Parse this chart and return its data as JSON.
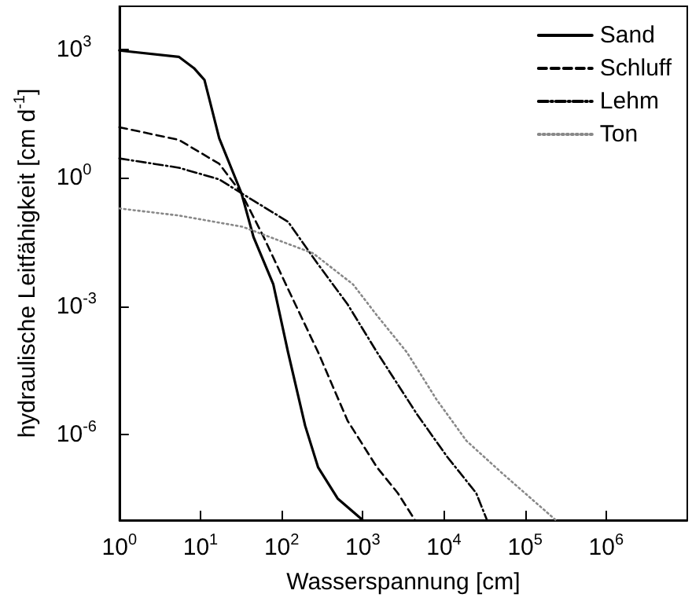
{
  "chart_data": {
    "type": "line",
    "xlabel": "Wasserspannung [cm]",
    "ylabel": "hydraulische Leitfähigkeit [cm d$^{-1}$]",
    "log": "xy",
    "xlim": [
      1,
      10000000
    ],
    "ylim": [
      1e-08,
      10000
    ],
    "xticks": [
      {
        "value": 1,
        "label": "10$^{0}$"
      },
      {
        "value": 10,
        "label": "10$^{1}$"
      },
      {
        "value": 100,
        "label": "10$^{2}$"
      },
      {
        "value": 1000,
        "label": "10$^{3}$"
      },
      {
        "value": 10000,
        "label": "10$^{4}$"
      },
      {
        "value": 100000,
        "label": "10$^{5}$"
      },
      {
        "value": 1000000,
        "label": "10$^{6}$"
      }
    ],
    "yticks": [
      {
        "value": 1e-06,
        "label": "10$^{-6}$"
      },
      {
        "value": 0.001,
        "label": "10$^{-3}$"
      },
      {
        "value": 1,
        "label": "10$^{0}$"
      },
      {
        "value": 1000,
        "label": "10$^{3}$"
      }
    ],
    "grid": false,
    "legend": "top right",
    "marker": "none",
    "series": [
      {
        "name": "Sand",
        "color": "#000000",
        "line_style": "solid",
        "x": [
          1,
          5.4,
          8.3,
          11.2,
          12.6,
          17,
          32,
          45,
          79,
          120,
          195,
          282,
          490,
          1000
        ],
        "values": [
          930,
          660,
          360,
          190,
          79,
          8.3,
          0.43,
          0.041,
          0.0032,
          8.3e-05,
          1.6e-06,
          1.7e-07,
          3.2e-08,
          1e-08
        ]
      },
      {
        "name": "Schluff",
        "color": "#000000",
        "line_style": "dashed",
        "x": [
          1,
          5.4,
          17,
          32,
          60,
          120,
          282,
          650,
          1500,
          2700,
          4400
        ],
        "values": [
          15,
          7.6,
          2.1,
          0.43,
          0.041,
          0.0025,
          8.3e-05,
          2.1e-06,
          1.7e-07,
          4.3e-08,
          1e-08
        ]
      },
      {
        "name": "Lehm",
        "color": "#000000",
        "line_style": "dashdot",
        "x": [
          1,
          5.4,
          17,
          32,
          120,
          275,
          650,
          1500,
          4700,
          11000,
          25000,
          34000
        ],
        "values": [
          2.8,
          1.7,
          0.91,
          0.43,
          0.093,
          0.01,
          0.0011,
          8.3e-05,
          2.9e-06,
          3e-07,
          4.3e-08,
          1e-08
        ]
      },
      {
        "name": "Ton",
        "color": "#888888",
        "line_style": "dotted",
        "x": [
          1,
          5.4,
          33,
          245,
          760,
          1500,
          3500,
          8100,
          19000,
          51000,
          240000
        ],
        "values": [
          0.19,
          0.13,
          0.071,
          0.017,
          0.0032,
          0.0006,
          8.3e-05,
          6.6e-06,
          7.1e-07,
          1.3e-07,
          1e-08
        ]
      }
    ]
  }
}
